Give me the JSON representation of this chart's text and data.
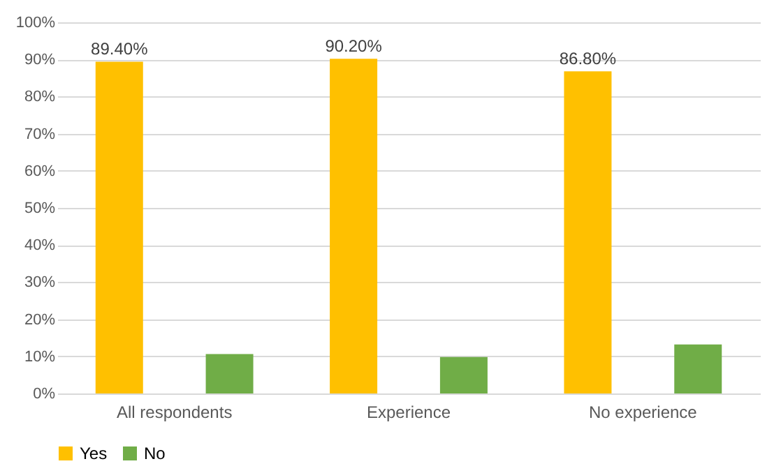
{
  "chart_data": {
    "type": "bar",
    "categories": [
      "All respondents",
      "Experience",
      "No experience"
    ],
    "series": [
      {
        "name": "Yes",
        "color": "#ffc000",
        "values": [
          89.4,
          90.2,
          86.8
        ],
        "value_labels": [
          "89.40%",
          "90.20%",
          "86.80%"
        ]
      },
      {
        "name": "No",
        "color": "#70ad47",
        "values": [
          10.6,
          9.8,
          13.2
        ],
        "value_labels": [
          null,
          null,
          null
        ]
      }
    ],
    "ylim": [
      0,
      100
    ],
    "yticks": [
      {
        "value": 0,
        "label": "0%"
      },
      {
        "value": 10,
        "label": "10%"
      },
      {
        "value": 20,
        "label": "20%"
      },
      {
        "value": 30,
        "label": "30%"
      },
      {
        "value": 40,
        "label": "40%"
      },
      {
        "value": 50,
        "label": "50%"
      },
      {
        "value": 60,
        "label": "60%"
      },
      {
        "value": 70,
        "label": "70%"
      },
      {
        "value": 80,
        "label": "80%"
      },
      {
        "value": 90,
        "label": "90%"
      },
      {
        "value": 100,
        "label": "100%"
      }
    ],
    "grid": "y",
    "legend": "bottom"
  }
}
